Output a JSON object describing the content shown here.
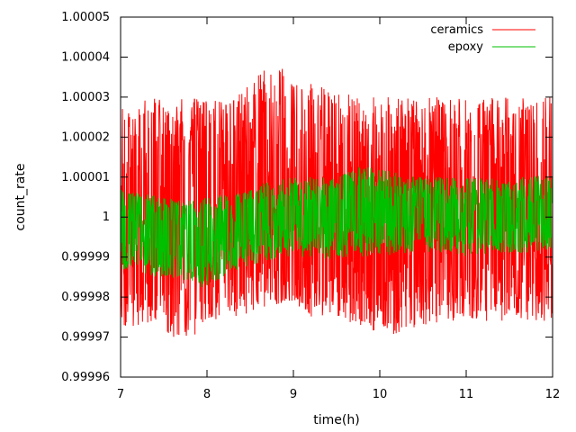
{
  "chart_data": {
    "type": "line",
    "title": "",
    "xlabel": "time(h)",
    "ylabel": "count_rate",
    "xlim": [
      7,
      12
    ],
    "ylim": [
      0.99996,
      1.00005
    ],
    "x_ticks": [
      7,
      8,
      9,
      10,
      11,
      12
    ],
    "x_tick_labels": [
      "7",
      "8",
      "9",
      "10",
      "11",
      "12"
    ],
    "y_ticks": [
      0.99996,
      0.99997,
      0.99998,
      0.99999,
      1.0,
      1.00001,
      1.00002,
      1.00003,
      1.00004,
      1.00005
    ],
    "y_tick_labels": [
      "0.99996",
      "0.99997",
      "0.99998",
      "0.99999",
      "1",
      "1.00001",
      "1.00002",
      "1.00003",
      "1.00004",
      "1.00005"
    ],
    "grid": false,
    "legend_position": "top-right",
    "series": [
      {
        "name": "ceramics",
        "color": "#ff0000",
        "x": [
          7.0,
          7.25,
          7.5,
          7.75,
          8.0,
          8.25,
          8.5,
          8.75,
          9.0,
          9.25,
          9.5,
          9.75,
          10.0,
          10.25,
          10.5,
          10.75,
          11.0,
          11.25,
          11.5,
          11.75,
          12.0
        ],
        "y_mean": [
          1.0,
          1.0,
          1.0,
          1.0,
          1.0,
          1.0,
          1.0,
          1.000002,
          1.000002,
          1.000001,
          1.0,
          1.0,
          1.0,
          1.0,
          1.0,
          1.0,
          1.0,
          1.0,
          1.0,
          1.0,
          1.0
        ],
        "y_min": [
          0.999972,
          0.999973,
          0.999972,
          0.999967,
          0.999974,
          0.999974,
          0.999976,
          0.999978,
          0.999979,
          0.999974,
          0.999975,
          0.999973,
          0.99997,
          0.999971,
          0.999973,
          0.999974,
          0.999974,
          0.999974,
          0.999974,
          0.999974,
          0.999974
        ],
        "y_max": [
          1.00003,
          1.00003,
          1.00003,
          1.00003,
          1.00003,
          1.00003,
          1.000033,
          1.00004,
          1.000035,
          1.000033,
          1.000032,
          1.00003,
          1.00003,
          1.00003,
          1.00003,
          1.00003,
          1.00003,
          1.00003,
          1.00003,
          1.00003,
          1.00003
        ]
      },
      {
        "name": "epoxy",
        "color": "#00c000",
        "x": [
          7.0,
          7.25,
          7.5,
          7.75,
          8.0,
          8.25,
          8.5,
          8.75,
          9.0,
          9.25,
          9.5,
          9.75,
          10.0,
          10.25,
          10.5,
          10.75,
          11.0,
          11.25,
          11.5,
          11.75,
          12.0
        ],
        "y_mean": [
          0.999999,
          0.999997,
          0.999997,
          0.999996,
          0.999996,
          0.999997,
          0.999999,
          1.0,
          1.0,
          1.0,
          1.0,
          1.000002,
          1.000002,
          1.000001,
          1.000001,
          1.0,
          1.0,
          1.0,
          1.000001,
          1.000001,
          1.000002
        ],
        "y_min": [
          0.999987,
          0.999985,
          0.999985,
          0.999984,
          0.999982,
          0.999986,
          0.999988,
          0.999989,
          0.99999,
          0.99999,
          0.999989,
          0.99999,
          0.99999,
          0.999991,
          0.999991,
          0.999991,
          0.99999,
          0.999991,
          0.999991,
          0.999991,
          0.999992
        ],
        "y_max": [
          1.000007,
          1.000006,
          1.000005,
          1.000004,
          1.000005,
          1.000006,
          1.000007,
          1.000009,
          1.00001,
          1.00001,
          1.00001,
          1.000013,
          1.000012,
          1.000011,
          1.00001,
          1.00001,
          1.00001,
          1.00001,
          1.00001,
          1.00001,
          1.000011
        ]
      }
    ]
  }
}
